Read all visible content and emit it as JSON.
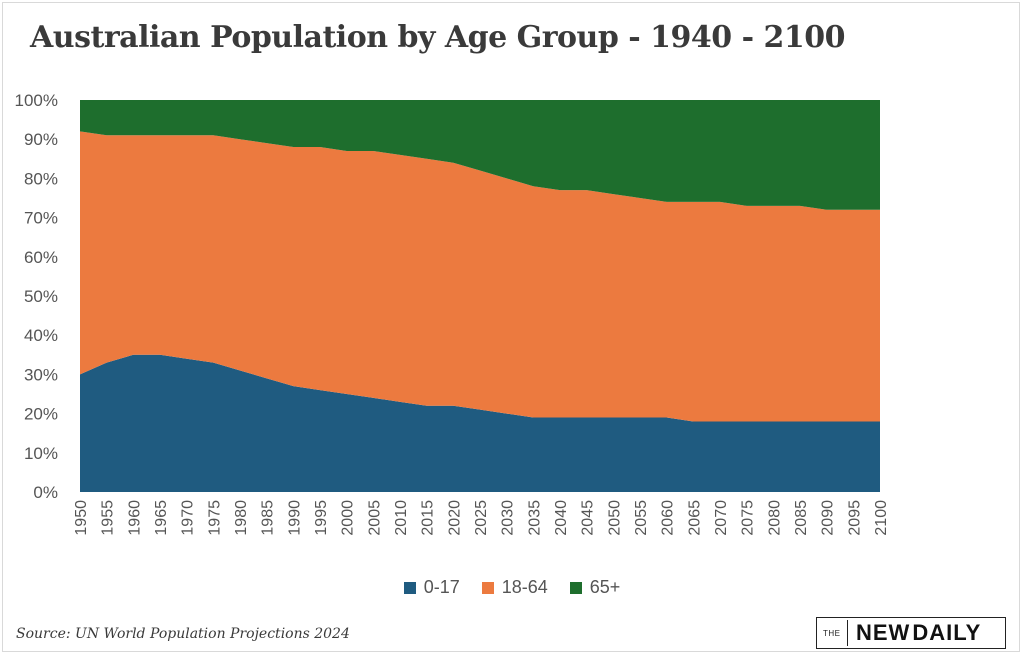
{
  "chart_data": {
    "type": "area",
    "stacked": true,
    "percent": true,
    "title": "Australian Population by Age Group - 1940 - 2100",
    "x": [
      1950,
      1955,
      1960,
      1965,
      1970,
      1975,
      1980,
      1985,
      1990,
      1995,
      2000,
      2005,
      2010,
      2015,
      2020,
      2025,
      2030,
      2035,
      2040,
      2045,
      2050,
      2055,
      2060,
      2065,
      2070,
      2075,
      2080,
      2085,
      2090,
      2095,
      2100
    ],
    "series": [
      {
        "name": "0-17",
        "color": "#1f5b80",
        "values": [
          30,
          33,
          35,
          35,
          34,
          33,
          31,
          29,
          27,
          26,
          25,
          24,
          23,
          22,
          22,
          21,
          20,
          19,
          19,
          19,
          19,
          19,
          19,
          18,
          18,
          18,
          18,
          18,
          18,
          18,
          18
        ]
      },
      {
        "name": "18-64",
        "color": "#ec7a3f",
        "values": [
          62,
          58,
          56,
          56,
          57,
          58,
          59,
          60,
          61,
          62,
          62,
          63,
          63,
          63,
          62,
          61,
          60,
          59,
          58,
          58,
          57,
          56,
          55,
          56,
          56,
          55,
          55,
          55,
          54,
          54,
          54
        ]
      },
      {
        "name": "65+",
        "color": "#1e6e2d",
        "values": [
          8,
          9,
          9,
          9,
          9,
          9,
          10,
          11,
          12,
          12,
          13,
          13,
          14,
          15,
          16,
          18,
          20,
          22,
          23,
          23,
          24,
          25,
          26,
          26,
          26,
          27,
          27,
          27,
          28,
          28,
          28
        ]
      }
    ],
    "ylim": [
      0,
      100
    ],
    "yticks": [
      "0%",
      "10%",
      "20%",
      "30%",
      "40%",
      "50%",
      "60%",
      "70%",
      "80%",
      "90%",
      "100%"
    ],
    "xticks": [
      "1950",
      "1955",
      "1960",
      "1965",
      "1970",
      "1975",
      "1980",
      "1985",
      "1990",
      "1995",
      "2000",
      "2005",
      "2010",
      "2015",
      "2020",
      "2025",
      "2030",
      "2035",
      "2040",
      "2045",
      "2050",
      "2055",
      "2060",
      "2065",
      "2070",
      "2075",
      "2080",
      "2085",
      "2090",
      "2095",
      "2100"
    ],
    "legend_position": "bottom",
    "grid": false
  },
  "source": "Source: UN World Population Projections 2024",
  "logo": {
    "the": "THE",
    "new": "NEW",
    "daily": "DAILY"
  }
}
